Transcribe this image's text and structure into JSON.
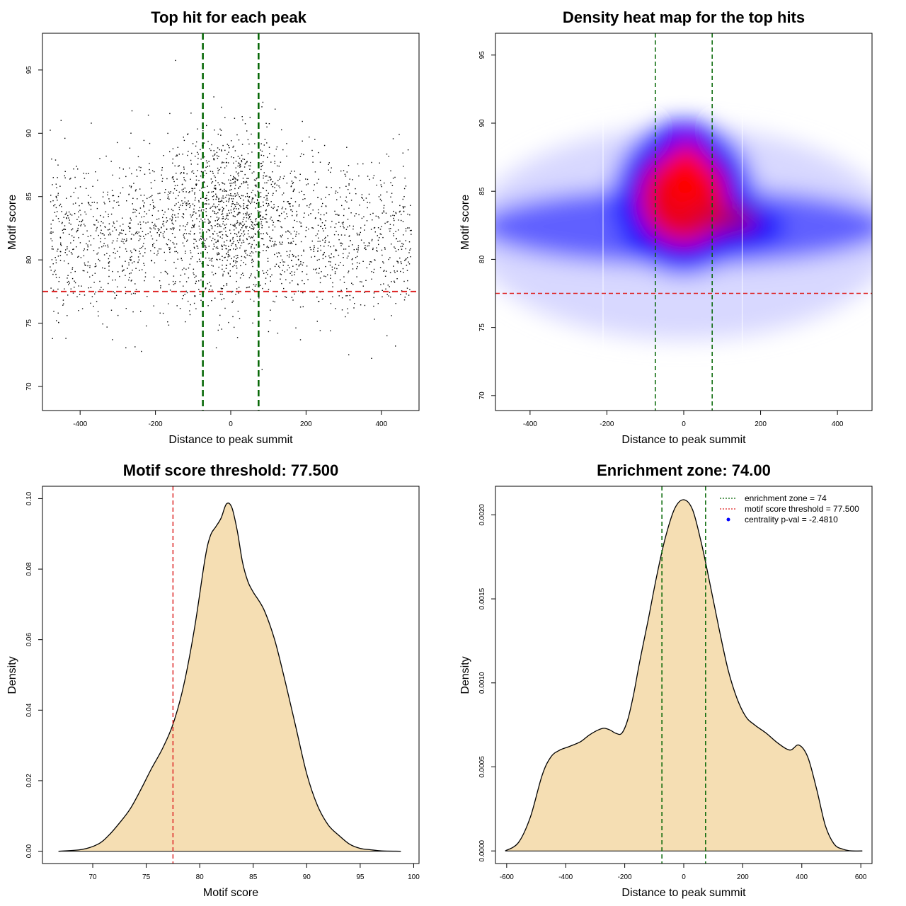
{
  "chart_data": [
    {
      "id": "scatter",
      "type": "scatter",
      "title": "Top hit for each peak",
      "xlabel": "Distance to peak summit",
      "ylabel": "Motif score",
      "xlim": [
        -500,
        500
      ],
      "ylim": [
        68.1,
        97.9
      ],
      "xticks": [
        -400,
        -200,
        0,
        200,
        400
      ],
      "xtick_labels": [
        "-400",
        "-200",
        "0",
        "200",
        "400"
      ],
      "yticks": [
        70,
        75,
        80,
        85,
        90,
        95
      ],
      "ytick_labels": [
        "70",
        "75",
        "80",
        "85",
        "90",
        "95"
      ],
      "n_points": 2600,
      "threshold_y": 77.5,
      "zone_x": [
        -74,
        74
      ],
      "colors": {
        "points": "#000000",
        "threshold": "#dd2222",
        "zone": "#006400"
      }
    },
    {
      "id": "heatmap",
      "type": "heatmap",
      "title": "Density heat map for the top hits",
      "xlabel": "Distance to peak summit",
      "ylabel": "Motif score",
      "xlim": [
        -490,
        490
      ],
      "ylim": [
        68.9,
        96.6
      ],
      "xticks": [
        -400,
        -200,
        0,
        200,
        400
      ],
      "xtick_labels": [
        "-400",
        "-200",
        "0",
        "200",
        "400"
      ],
      "yticks": [
        70,
        75,
        80,
        85,
        90,
        95
      ],
      "ytick_labels": [
        "70",
        "75",
        "80",
        "85",
        "90",
        "95"
      ],
      "threshold_y": 77.5,
      "zone_x": [
        -74,
        74
      ],
      "white_lines_x": [
        -210,
        152
      ],
      "colors": {
        "low": "#ffffff",
        "mid": "#0000ff",
        "high": "#ff0000",
        "threshold": "#dd2222",
        "zone": "#006400"
      }
    },
    {
      "id": "score-density",
      "type": "area",
      "title": "Motif score threshold: 77.500",
      "xlabel": "Motif score",
      "ylabel": "Density",
      "xlim": [
        65.3,
        100.5
      ],
      "ylim": [
        -0.0035,
        0.1035
      ],
      "xticks": [
        70,
        75,
        80,
        85,
        90,
        95,
        100
      ],
      "xtick_labels": [
        "70",
        "75",
        "80",
        "85",
        "90",
        "95",
        "100"
      ],
      "yticks": [
        0,
        0.02,
        0.04,
        0.06,
        0.08,
        0.1
      ],
      "ytick_labels": [
        "0.00",
        "0.02",
        "0.04",
        "0.06",
        "0.08",
        "0.10"
      ],
      "x": [
        66.8,
        69,
        70.5,
        71.5,
        72.5,
        73.5,
        74.5,
        75.5,
        76.5,
        77.5,
        78.5,
        79.5,
        80.5,
        81,
        81.5,
        82,
        82.5,
        83,
        83.5,
        84,
        84.5,
        85,
        86,
        87,
        88,
        89,
        90,
        91,
        92,
        93,
        94,
        95,
        96,
        97,
        98.8
      ],
      "y": [
        0,
        0.0005,
        0.002,
        0.0045,
        0.008,
        0.012,
        0.0175,
        0.0235,
        0.029,
        0.036,
        0.047,
        0.063,
        0.083,
        0.0895,
        0.092,
        0.0945,
        0.0985,
        0.0975,
        0.091,
        0.082,
        0.0765,
        0.0735,
        0.0685,
        0.06,
        0.048,
        0.035,
        0.022,
        0.013,
        0.0075,
        0.0045,
        0.002,
        0.0008,
        0.0004,
        0.0001,
        0
      ],
      "fill": "#f5deb3",
      "threshold_x": 77.5,
      "colors": {
        "threshold": "#dd2222",
        "line": "#000000"
      }
    },
    {
      "id": "distance-density",
      "type": "area",
      "title": "Enrichment zone: 74.00",
      "xlabel": "Distance to peak summit",
      "ylabel": "Density",
      "xlim": [
        -638,
        638
      ],
      "ylim": [
        -7.5e-05,
        0.00217
      ],
      "xticks": [
        -600,
        -400,
        -200,
        0,
        200,
        400,
        600
      ],
      "xtick_labels": [
        "-600",
        "-400",
        "-200",
        "0",
        "200",
        "400",
        "600"
      ],
      "yticks": [
        0,
        0.0005,
        0.001,
        0.0015,
        0.002
      ],
      "ytick_labels": [
        "0.0000",
        "0.0005",
        "0.0010",
        "0.0015",
        "0.0020"
      ],
      "x": [
        -605,
        -560,
        -520,
        -480,
        -450,
        -420,
        -390,
        -350,
        -320,
        -290,
        -270,
        -250,
        -230,
        -210,
        -190,
        -170,
        -150,
        -120,
        -90,
        -60,
        -30,
        0,
        30,
        60,
        90,
        120,
        150,
        180,
        210,
        240,
        280,
        320,
        360,
        390,
        420,
        450,
        480,
        510,
        540,
        570,
        605
      ],
      "y": [
        0,
        5e-05,
        0.0002,
        0.00045,
        0.00056,
        0.0006,
        0.00062,
        0.00065,
        0.00069,
        0.00072,
        0.00073,
        0.00072,
        0.0007,
        0.0007,
        0.00078,
        0.00093,
        0.00112,
        0.00138,
        0.00165,
        0.00188,
        0.00204,
        0.00209,
        0.00203,
        0.00183,
        0.00158,
        0.00132,
        0.00108,
        0.00091,
        0.0008,
        0.00075,
        0.0007,
        0.00064,
        0.0006,
        0.00063,
        0.00056,
        0.00037,
        0.00015,
        4e-05,
        1e-05,
        0,
        0
      ],
      "fill": "#f5deb3",
      "zone_x": [
        -74,
        74
      ],
      "colors": {
        "zone": "#006400",
        "line": "#000000"
      },
      "legend": {
        "position": "top-right",
        "entries": [
          {
            "label": "enrichment zone = 74",
            "color": "#006400",
            "style": "dotted-line"
          },
          {
            "label": "motif score threshold = 77.500",
            "color": "#dd2222",
            "style": "dotted-line"
          },
          {
            "label": "centrality p-val = -2.4810",
            "color": "#0000ff",
            "style": "point"
          }
        ]
      }
    }
  ]
}
